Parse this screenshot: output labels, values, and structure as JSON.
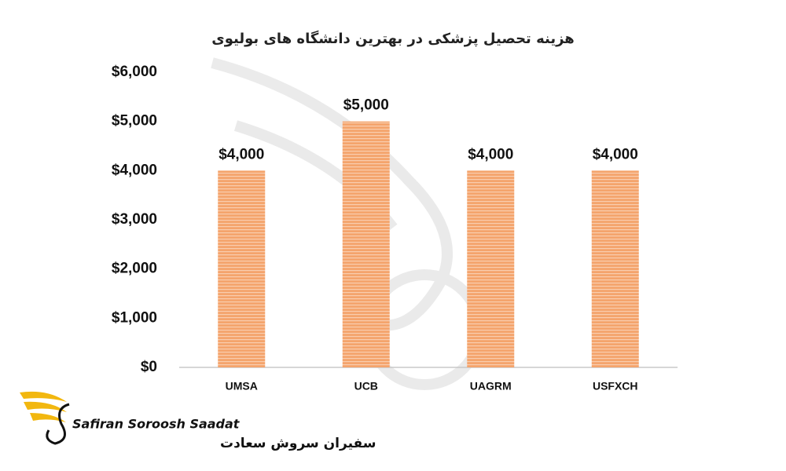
{
  "chart_data": {
    "type": "bar",
    "title": "هزینه تحصیل پزشکی در بهترین دانشگاه های بولیوی",
    "categories": [
      "UMSA",
      "UCB",
      "UAGRM",
      "USFXCH"
    ],
    "values": [
      4000,
      5000,
      4000,
      4000
    ],
    "value_labels": [
      "$4,000",
      "$5,000",
      "$4,000",
      "$4,000"
    ],
    "color": "#f4a46c",
    "ylim": [
      0,
      6000
    ],
    "yticks": [
      {
        "value": 0,
        "label": "$0"
      },
      {
        "value": 1000,
        "label": "$1,000"
      },
      {
        "value": 2000,
        "label": "$2,000"
      },
      {
        "value": 3000,
        "label": "$3,000"
      },
      {
        "value": 4000,
        "label": "$4,000"
      },
      {
        "value": 5000,
        "label": "$5,000"
      },
      {
        "value": 6000,
        "label": "$6,000"
      }
    ],
    "grid": false
  },
  "logo": {
    "latin": "Safiran Soroosh Saadat",
    "persian": "سفیران سروش سعادت"
  }
}
